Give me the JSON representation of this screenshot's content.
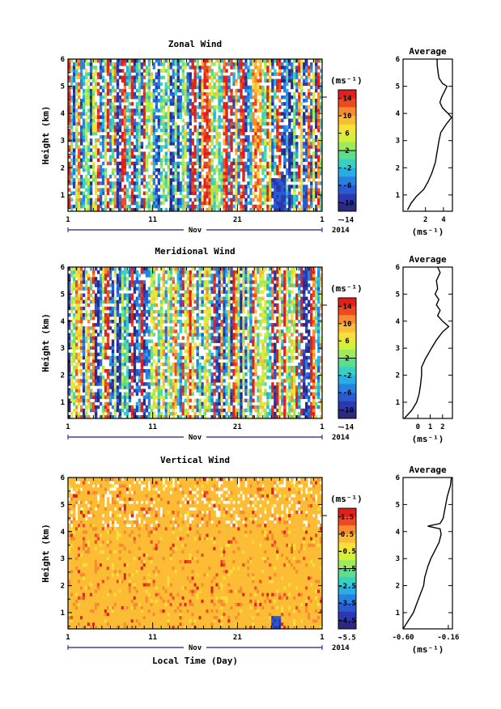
{
  "chart_data": [
    {
      "type": "heatmap",
      "title": "Zonal Wind",
      "ylabel": "Height (km)",
      "ylim": [
        0.4,
        6.0
      ],
      "yticks": [
        "1",
        "2",
        "3",
        "4",
        "5",
        "6"
      ],
      "xticks": [
        "1",
        "11",
        "21",
        "1"
      ],
      "xlabel_sub": "Nov",
      "year_label": "2014",
      "colorbar": {
        "unit": "(ms⁻¹)",
        "tick_labels": [
          "14",
          "10",
          "6",
          "2",
          "-2",
          "-6",
          "-10",
          "-14"
        ],
        "colors": [
          "#e0201c",
          "#ee4a22",
          "#f88a30",
          "#fcbc35",
          "#f6e03a",
          "#d6ee3c",
          "#9eea5a",
          "#5cde8c",
          "#38cfc4",
          "#28aee4",
          "#2582e0",
          "#2a5ad0",
          "#2c38b0",
          "#2a2a82"
        ]
      },
      "average_panel": {
        "title": "Average",
        "xlabel": "(ms⁻¹)",
        "xticks": [
          "2",
          "4"
        ],
        "xlim": [
          -0.5,
          5.0
        ],
        "profile": [
          {
            "h": 0.45,
            "v": 0.0
          },
          {
            "h": 0.7,
            "v": 0.4
          },
          {
            "h": 0.95,
            "v": 1.0
          },
          {
            "h": 1.2,
            "v": 1.8
          },
          {
            "h": 1.5,
            "v": 2.3
          },
          {
            "h": 1.8,
            "v": 2.7
          },
          {
            "h": 2.2,
            "v": 3.1
          },
          {
            "h": 2.6,
            "v": 3.3
          },
          {
            "h": 3.0,
            "v": 3.5
          },
          {
            "h": 3.3,
            "v": 3.7
          },
          {
            "h": 3.6,
            "v": 4.3
          },
          {
            "h": 3.85,
            "v": 4.9
          },
          {
            "h": 4.0,
            "v": 4.5
          },
          {
            "h": 4.2,
            "v": 3.9
          },
          {
            "h": 4.4,
            "v": 3.6
          },
          {
            "h": 4.6,
            "v": 3.8
          },
          {
            "h": 4.8,
            "v": 4.1
          },
          {
            "h": 5.0,
            "v": 4.4
          },
          {
            "h": 5.1,
            "v": 3.9
          },
          {
            "h": 5.3,
            "v": 3.5
          },
          {
            "h": 5.5,
            "v": 3.4
          },
          {
            "h": 5.8,
            "v": 3.3
          },
          {
            "h": 6.0,
            "v": 3.3
          }
        ]
      }
    },
    {
      "type": "heatmap",
      "title": "Meridional Wind",
      "ylabel": "Height (km)",
      "ylim": [
        0.4,
        6.0
      ],
      "yticks": [
        "1",
        "2",
        "3",
        "4",
        "5",
        "6"
      ],
      "xticks": [
        "1",
        "11",
        "21",
        "1"
      ],
      "xlabel_sub": "Nov",
      "year_label": "2014",
      "colorbar": {
        "unit": "(ms⁻¹)",
        "tick_labels": [
          "14",
          "10",
          "6",
          "2",
          "-2",
          "-6",
          "-10",
          "-14"
        ],
        "colors": [
          "#e0201c",
          "#ee4a22",
          "#f88a30",
          "#fcbc35",
          "#f6e03a",
          "#d6ee3c",
          "#9eea5a",
          "#5cde8c",
          "#38cfc4",
          "#28aee4",
          "#2582e0",
          "#2a5ad0",
          "#2c38b0",
          "#2a2a82"
        ]
      },
      "average_panel": {
        "title": "Average",
        "xlabel": "(ms⁻¹)",
        "xticks": [
          "0",
          "1",
          "2"
        ],
        "xlim": [
          -1.2,
          2.8
        ],
        "profile": [
          {
            "h": 0.4,
            "v": -1.1
          },
          {
            "h": 0.7,
            "v": -0.5
          },
          {
            "h": 1.0,
            "v": -0.1
          },
          {
            "h": 1.3,
            "v": 0.1
          },
          {
            "h": 1.6,
            "v": 0.2
          },
          {
            "h": 2.0,
            "v": 0.3
          },
          {
            "h": 2.3,
            "v": 0.3
          },
          {
            "h": 2.6,
            "v": 0.6
          },
          {
            "h": 3.0,
            "v": 1.1
          },
          {
            "h": 3.3,
            "v": 1.5
          },
          {
            "h": 3.6,
            "v": 2.0
          },
          {
            "h": 3.8,
            "v": 2.5
          },
          {
            "h": 4.0,
            "v": 2.0
          },
          {
            "h": 4.2,
            "v": 1.6
          },
          {
            "h": 4.4,
            "v": 1.8
          },
          {
            "h": 4.6,
            "v": 1.5
          },
          {
            "h": 4.8,
            "v": 1.7
          },
          {
            "h": 5.0,
            "v": 1.4
          },
          {
            "h": 5.2,
            "v": 1.6
          },
          {
            "h": 5.5,
            "v": 1.5
          },
          {
            "h": 5.8,
            "v": 1.8
          },
          {
            "h": 6.0,
            "v": 1.6
          }
        ]
      }
    },
    {
      "type": "heatmap",
      "title": "Vertical Wind",
      "ylabel": "Height (km)",
      "xlabel": "Local Time (Day)",
      "ylim": [
        0.4,
        6.0
      ],
      "yticks": [
        "1",
        "2",
        "3",
        "4",
        "5",
        "6"
      ],
      "xticks": [
        "1",
        "11",
        "21",
        "1"
      ],
      "xlabel_sub": "Nov",
      "year_label": "2014",
      "colorbar": {
        "unit": "(ms⁻¹)",
        "tick_labels": [
          "1.5",
          "0.5",
          "-0.5",
          "-1.5",
          "-2.5",
          "-3.5",
          "-4.5",
          "-5.5"
        ],
        "colors": [
          "#e0201c",
          "#ee4a22",
          "#f88a30",
          "#fcbc35",
          "#f6e03a",
          "#d6ee3c",
          "#9eea5a",
          "#5cde8c",
          "#38cfc4",
          "#28aee4",
          "#2582e0",
          "#2a5ad0",
          "#2c38b0",
          "#2a2a82"
        ]
      },
      "average_panel": {
        "title": "Average",
        "xlabel": "(ms⁻¹)",
        "xticks": [
          "-0.60",
          "-0.16"
        ],
        "xlim": [
          -0.6,
          -0.12
        ],
        "profile": [
          {
            "h": 0.4,
            "v": -0.6
          },
          {
            "h": 0.7,
            "v": -0.55
          },
          {
            "h": 1.0,
            "v": -0.5
          },
          {
            "h": 1.3,
            "v": -0.47
          },
          {
            "h": 1.6,
            "v": -0.44
          },
          {
            "h": 2.0,
            "v": -0.4
          },
          {
            "h": 2.3,
            "v": -0.39
          },
          {
            "h": 2.7,
            "v": -0.36
          },
          {
            "h": 3.0,
            "v": -0.33
          },
          {
            "h": 3.3,
            "v": -0.29
          },
          {
            "h": 3.6,
            "v": -0.25
          },
          {
            "h": 3.9,
            "v": -0.23
          },
          {
            "h": 4.1,
            "v": -0.24
          },
          {
            "h": 4.2,
            "v": -0.36
          },
          {
            "h": 4.3,
            "v": -0.24
          },
          {
            "h": 4.5,
            "v": -0.21
          },
          {
            "h": 4.9,
            "v": -0.19
          },
          {
            "h": 5.3,
            "v": -0.17
          },
          {
            "h": 5.7,
            "v": -0.14
          },
          {
            "h": 6.0,
            "v": -0.13
          }
        ]
      }
    }
  ]
}
